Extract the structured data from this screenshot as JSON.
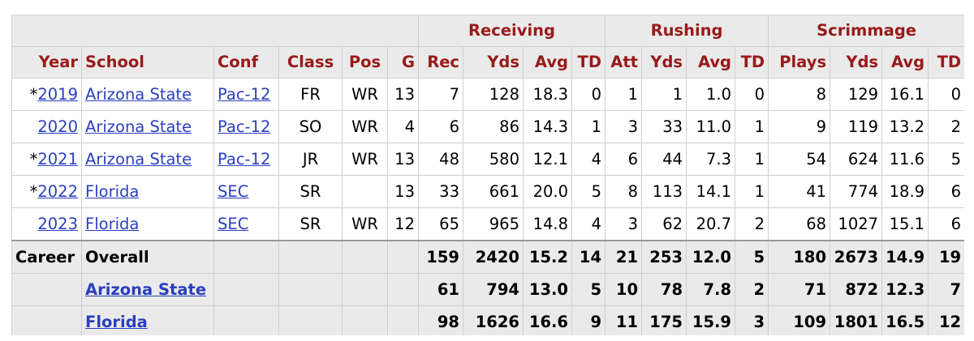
{
  "table": {
    "groups": {
      "receiving": "Receiving",
      "rushing": "Rushing",
      "scrimmage": "Scrimmage"
    },
    "columns": [
      "Year",
      "School",
      "Conf",
      "Class",
      "Pos",
      "G",
      "Rec",
      "Yds",
      "Avg",
      "TD",
      "Att",
      "Yds",
      "Avg",
      "TD",
      "Plays",
      "Yds",
      "Avg",
      "TD"
    ],
    "rows": [
      {
        "marker": "*",
        "year": "2019",
        "school": "Arizona State",
        "conf": "Pac-12",
        "class": "FR",
        "pos": "WR",
        "g": "13",
        "rec": "7",
        "rec_yds": "128",
        "rec_avg": "18.3",
        "rec_td": "0",
        "att": "1",
        "rush_yds": "1",
        "rush_avg": "1.0",
        "rush_td": "0",
        "plays": "8",
        "scrim_yds": "129",
        "scrim_avg": "16.1",
        "scrim_td": "0"
      },
      {
        "marker": "",
        "year": "2020",
        "school": "Arizona State",
        "conf": "Pac-12",
        "class": "SO",
        "pos": "WR",
        "g": "4",
        "rec": "6",
        "rec_yds": "86",
        "rec_avg": "14.3",
        "rec_td": "1",
        "att": "3",
        "rush_yds": "33",
        "rush_avg": "11.0",
        "rush_td": "1",
        "plays": "9",
        "scrim_yds": "119",
        "scrim_avg": "13.2",
        "scrim_td": "2"
      },
      {
        "marker": "*",
        "year": "2021",
        "school": "Arizona State",
        "conf": "Pac-12",
        "class": "JR",
        "pos": "WR",
        "g": "13",
        "rec": "48",
        "rec_yds": "580",
        "rec_avg": "12.1",
        "rec_td": "4",
        "att": "6",
        "rush_yds": "44",
        "rush_avg": "7.3",
        "rush_td": "1",
        "plays": "54",
        "scrim_yds": "624",
        "scrim_avg": "11.6",
        "scrim_td": "5"
      },
      {
        "marker": "*",
        "year": "2022",
        "school": "Florida",
        "conf": "SEC",
        "class": "SR",
        "pos": "",
        "g": "13",
        "rec": "33",
        "rec_yds": "661",
        "rec_avg": "20.0",
        "rec_td": "5",
        "att": "8",
        "rush_yds": "113",
        "rush_avg": "14.1",
        "rush_td": "1",
        "plays": "41",
        "scrim_yds": "774",
        "scrim_avg": "18.9",
        "scrim_td": "6"
      },
      {
        "marker": "",
        "year": "2023",
        "school": "Florida",
        "conf": "SEC",
        "class": "SR",
        "pos": "WR",
        "g": "12",
        "rec": "65",
        "rec_yds": "965",
        "rec_avg": "14.8",
        "rec_td": "4",
        "att": "3",
        "rush_yds": "62",
        "rush_avg": "20.7",
        "rush_td": "2",
        "plays": "68",
        "scrim_yds": "1027",
        "scrim_avg": "15.1",
        "scrim_td": "6"
      }
    ],
    "career": {
      "label": "Career",
      "overall": {
        "name": "Overall",
        "rec": "159",
        "rec_yds": "2420",
        "rec_avg": "15.2",
        "rec_td": "14",
        "att": "21",
        "rush_yds": "253",
        "rush_avg": "12.0",
        "rush_td": "5",
        "plays": "180",
        "scrim_yds": "2673",
        "scrim_avg": "14.9",
        "scrim_td": "19"
      },
      "schools": [
        {
          "name": "Arizona State",
          "rec": "61",
          "rec_yds": "794",
          "rec_avg": "13.0",
          "rec_td": "5",
          "att": "10",
          "rush_yds": "78",
          "rush_avg": "7.8",
          "rush_td": "2",
          "plays": "71",
          "scrim_yds": "872",
          "scrim_avg": "12.3",
          "scrim_td": "7"
        },
        {
          "name": "Florida",
          "rec": "98",
          "rec_yds": "1626",
          "rec_avg": "16.6",
          "rec_td": "9",
          "att": "11",
          "rush_yds": "175",
          "rush_avg": "15.9",
          "rush_td": "3",
          "plays": "109",
          "scrim_yds": "1801",
          "scrim_avg": "16.5",
          "scrim_td": "12"
        }
      ]
    }
  },
  "colors": {
    "header_text": "#991a1a",
    "header_bg": "#eaeaea",
    "link": "#2a3fbf",
    "border": "#cfcfcf"
  }
}
